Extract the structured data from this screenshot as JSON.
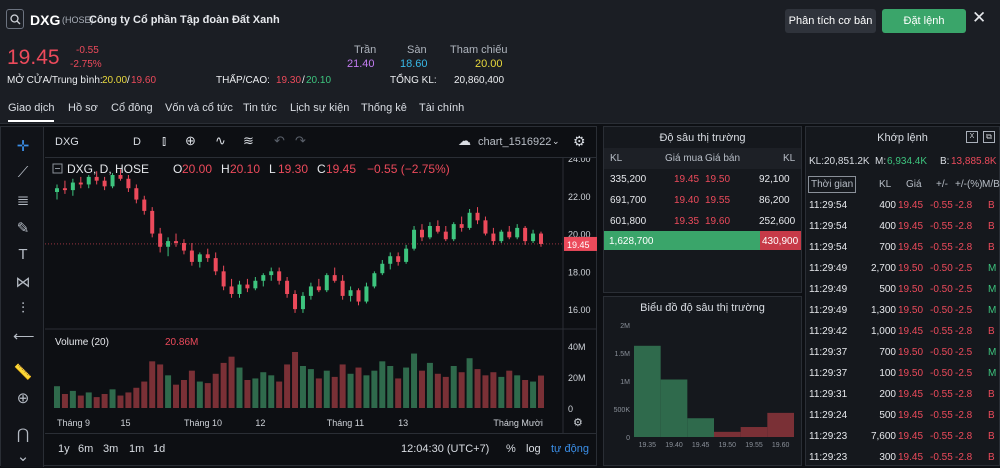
{
  "header": {
    "symbol": "DXG",
    "exchange": "(HOSE)",
    "company": "Công ty Cổ phần Tập đoàn Đất Xanh",
    "btn_analysis": "Phân tích cơ bản",
    "btn_order": "Đặt lệnh",
    "close": "✕"
  },
  "quote": {
    "price": "19.45",
    "change": "-0.55",
    "change_pct": "-2.75%",
    "open_avg_label": "MỞ CỬA/Trung bình:",
    "open": "20.00",
    "avg": "19.60",
    "ceiling_label": "Trần",
    "ceiling": "21.40",
    "floor_label": "Sàn",
    "floor": "18.60",
    "ref_label": "Tham chiếu",
    "ref": "20.00",
    "lowhigh_label": "THẤP/CAO:",
    "low": "19.30",
    "high": "20.10",
    "vol_label": "TỔNG KL:",
    "vol": "20,860,400"
  },
  "tabs": [
    "Giao dịch",
    "Hồ sơ",
    "Cổ đông",
    "Vốn và cổ tức",
    "Tin tức",
    "Lịch sự kiện",
    "Thống kê",
    "Tài chính"
  ],
  "chart": {
    "symbol": "DXG",
    "interval": "D",
    "chart_name": "chart_1516922",
    "legend_title": "DXG, D, HOSE",
    "o_label": "O",
    "o": "20.00",
    "h_label": "H",
    "h": "20.10",
    "l_label": "L",
    "l": "19.30",
    "c_label": "C",
    "c": "19.45",
    "chg": "−0.55 (−2.75%)",
    "last_price_tag": "19.45",
    "price_ticks": [
      "24.00",
      "22.00",
      "20.00",
      "18.00",
      "16.00"
    ],
    "volume_label": "Volume (20)",
    "volume_value": "20.86M",
    "volume_ticks": [
      "40M",
      "20M",
      "0"
    ],
    "time_ticks": [
      "Tháng 9",
      "15",
      "Tháng 10",
      "12",
      "Tháng 11",
      "13",
      "Tháng Mười"
    ],
    "ranges": [
      "1y",
      "6m",
      "3m",
      "1m",
      "1d"
    ],
    "clock": "12:04:30 (UTC+7)",
    "pct": "%",
    "log": "log",
    "auto": "tự động"
  },
  "chart_data": {
    "type": "candlestick",
    "ylim": [
      15,
      24
    ],
    "candles": [
      [
        22.2,
        22.6,
        21.8,
        22.4
      ],
      [
        22.4,
        22.8,
        22.1,
        22.3
      ],
      [
        22.3,
        22.9,
        22.0,
        22.7
      ],
      [
        22.7,
        23.0,
        22.4,
        22.6
      ],
      [
        22.6,
        23.1,
        22.4,
        23.0
      ],
      [
        23.0,
        23.3,
        22.6,
        22.8
      ],
      [
        22.8,
        23.0,
        22.3,
        22.5
      ],
      [
        22.5,
        23.2,
        22.4,
        23.1
      ],
      [
        23.1,
        23.4,
        22.8,
        22.9
      ],
      [
        22.9,
        23.1,
        22.2,
        22.4
      ],
      [
        22.4,
        22.6,
        21.6,
        21.8
      ],
      [
        21.8,
        22.0,
        21.0,
        21.2
      ],
      [
        21.2,
        21.4,
        19.8,
        20.0
      ],
      [
        20.0,
        20.3,
        19.0,
        19.3
      ],
      [
        19.3,
        19.8,
        18.8,
        19.6
      ],
      [
        19.6,
        20.0,
        19.3,
        19.5
      ],
      [
        19.5,
        19.7,
        18.9,
        19.1
      ],
      [
        19.1,
        19.5,
        18.3,
        18.5
      ],
      [
        18.5,
        19.0,
        18.2,
        18.9
      ],
      [
        18.9,
        19.2,
        18.5,
        18.7
      ],
      [
        18.7,
        19.0,
        17.8,
        18.0
      ],
      [
        18.0,
        18.3,
        17.0,
        17.2
      ],
      [
        17.2,
        17.6,
        16.6,
        16.8
      ],
      [
        16.8,
        17.5,
        16.6,
        17.3
      ],
      [
        17.3,
        17.6,
        16.9,
        17.1
      ],
      [
        17.1,
        17.7,
        17.0,
        17.5
      ],
      [
        17.5,
        17.9,
        17.2,
        17.8
      ],
      [
        17.8,
        18.2,
        17.5,
        18.0
      ],
      [
        18.0,
        18.2,
        17.3,
        17.5
      ],
      [
        17.5,
        17.7,
        16.6,
        16.8
      ],
      [
        16.8,
        17.0,
        15.8,
        16.0
      ],
      [
        16.0,
        16.9,
        15.8,
        16.7
      ],
      [
        16.7,
        17.4,
        16.5,
        17.2
      ],
      [
        17.2,
        17.6,
        16.9,
        17.0
      ],
      [
        17.0,
        17.9,
        16.9,
        17.8
      ],
      [
        17.8,
        18.2,
        17.4,
        17.5
      ],
      [
        17.5,
        17.8,
        16.5,
        16.7
      ],
      [
        16.7,
        17.2,
        16.4,
        17.0
      ],
      [
        17.0,
        17.1,
        16.2,
        16.4
      ],
      [
        16.4,
        17.4,
        16.3,
        17.2
      ],
      [
        17.2,
        18.0,
        17.1,
        17.9
      ],
      [
        17.9,
        18.6,
        17.8,
        18.4
      ],
      [
        18.4,
        19.0,
        18.1,
        18.8
      ],
      [
        18.8,
        19.0,
        18.3,
        18.5
      ],
      [
        18.5,
        19.4,
        18.4,
        19.2
      ],
      [
        19.2,
        20.4,
        19.1,
        20.2
      ],
      [
        20.2,
        20.5,
        19.6,
        19.8
      ],
      [
        19.8,
        20.6,
        19.7,
        20.4
      ],
      [
        20.4,
        20.7,
        20.0,
        20.1
      ],
      [
        20.1,
        20.4,
        19.6,
        19.7
      ],
      [
        19.7,
        20.6,
        19.6,
        20.5
      ],
      [
        20.5,
        20.9,
        20.1,
        20.3
      ],
      [
        20.3,
        21.3,
        20.2,
        21.1
      ],
      [
        21.1,
        21.4,
        20.5,
        20.7
      ],
      [
        20.7,
        20.9,
        19.9,
        20.0
      ],
      [
        20.0,
        20.3,
        19.4,
        19.6
      ],
      [
        19.6,
        20.2,
        19.5,
        20.1
      ],
      [
        20.1,
        20.4,
        19.7,
        19.8
      ],
      [
        19.8,
        20.5,
        19.7,
        20.3
      ],
      [
        20.3,
        20.4,
        19.4,
        19.6
      ],
      [
        19.6,
        20.2,
        19.5,
        20.0
      ],
      [
        20.0,
        20.1,
        19.3,
        19.45
      ]
    ],
    "volumes": [
      14,
      9,
      11,
      8,
      10,
      7,
      9,
      12,
      8,
      10,
      13,
      17,
      30,
      28,
      21,
      15,
      18,
      24,
      17,
      16,
      22,
      29,
      33,
      26,
      18,
      19,
      23,
      21,
      17,
      28,
      36,
      27,
      25,
      19,
      24,
      20,
      28,
      22,
      26,
      21,
      24,
      30,
      27,
      19,
      26,
      35,
      24,
      29,
      22,
      20,
      27,
      23,
      32,
      25,
      21,
      23,
      20,
      24,
      21,
      18,
      17,
      20.86
    ]
  },
  "depth": {
    "title": "Độ sâu thị trường",
    "col_kl": "KL",
    "col_bid": "Giá mua",
    "col_ask": "Giá bán",
    "col_kl2": "KL",
    "rows": [
      {
        "bid_vol": "335,200",
        "bid": "19.45",
        "ask": "19.50",
        "ask_vol": "92,100"
      },
      {
        "bid_vol": "691,700",
        "bid": "19.40",
        "ask": "19.55",
        "ask_vol": "86,200"
      },
      {
        "bid_vol": "601,800",
        "bid": "19.35",
        "ask": "19.60",
        "ask_vol": "252,600"
      }
    ],
    "total_bid": "1,628,700",
    "total_ask": "430,900"
  },
  "depth_chart": {
    "title": "Biểu đồ độ sâu thị trường",
    "y_ticks": [
      "2M",
      "1.5M",
      "1M",
      "500K",
      "0"
    ],
    "x_ticks": [
      "19.35",
      "19.40",
      "19.45",
      "19.50",
      "19.55",
      "19.60"
    ],
    "bid_cum": [
      1628700,
      1026900,
      335200
    ],
    "ask_cum": [
      92100,
      178300,
      430900
    ]
  },
  "matched": {
    "title": "Khớp lệnh",
    "kl_label": "KL:",
    "kl": "20,851.2K",
    "m_label": "M:",
    "m": "6,934.4K",
    "b_label": "B:",
    "b": "13,885.8K",
    "cols": [
      "Thời gian",
      "KL",
      "Giá",
      "+/-",
      "+/-(%)",
      "M/B"
    ],
    "rows": [
      [
        "11:29:54",
        "400",
        "19.45",
        "-0.55",
        "-2.8",
        "B"
      ],
      [
        "11:29:54",
        "400",
        "19.45",
        "-0.55",
        "-2.8",
        "B"
      ],
      [
        "11:29:54",
        "700",
        "19.45",
        "-0.55",
        "-2.8",
        "B"
      ],
      [
        "11:29:49",
        "2,700",
        "19.50",
        "-0.50",
        "-2.5",
        "M"
      ],
      [
        "11:29:49",
        "500",
        "19.50",
        "-0.50",
        "-2.5",
        "M"
      ],
      [
        "11:29:49",
        "1,300",
        "19.50",
        "-0.50",
        "-2.5",
        "M"
      ],
      [
        "11:29:42",
        "1,000",
        "19.45",
        "-0.55",
        "-2.8",
        "B"
      ],
      [
        "11:29:37",
        "700",
        "19.50",
        "-0.50",
        "-2.5",
        "M"
      ],
      [
        "11:29:37",
        "100",
        "19.50",
        "-0.50",
        "-2.5",
        "M"
      ],
      [
        "11:29:31",
        "200",
        "19.45",
        "-0.55",
        "-2.8",
        "B"
      ],
      [
        "11:29:24",
        "500",
        "19.45",
        "-0.55",
        "-2.8",
        "B"
      ],
      [
        "11:29:23",
        "7,600",
        "19.45",
        "-0.55",
        "-2.8",
        "B"
      ],
      [
        "11:29:23",
        "300",
        "19.45",
        "-0.55",
        "-2.8",
        "B"
      ]
    ]
  },
  "colors": {
    "up": "#3dc47e",
    "down": "#ec4a5b",
    "accent": "#3aa56a"
  }
}
